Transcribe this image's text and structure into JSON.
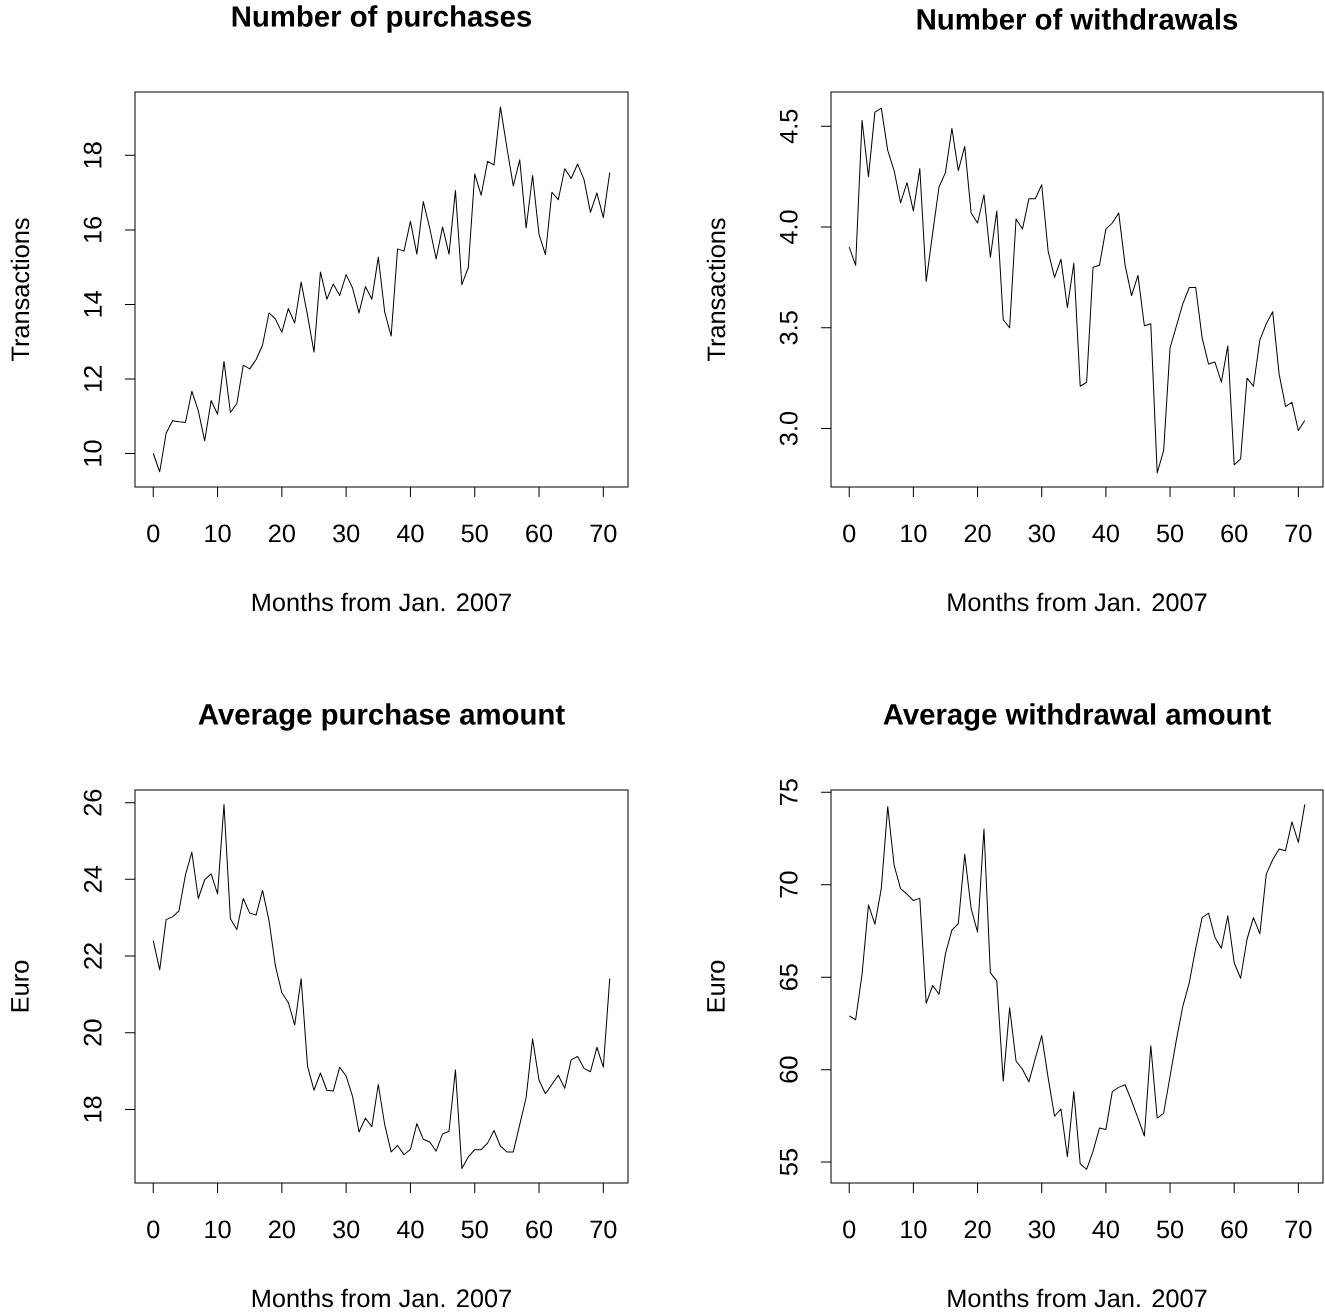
{
  "chart_data": [
    {
      "type": "line",
      "title": "Number of purchases",
      "xlabel": "Months from Jan. 2007",
      "ylabel": "Transactions",
      "color": "#000000",
      "x": [
        0,
        1,
        2,
        3,
        4,
        5,
        6,
        7,
        8,
        9,
        10,
        11,
        12,
        13,
        14,
        15,
        16,
        17,
        18,
        19,
        20,
        21,
        22,
        23,
        24,
        25,
        26,
        27,
        28,
        29,
        30,
        31,
        32,
        33,
        34,
        35,
        36,
        37,
        38,
        39,
        40,
        41,
        42,
        43,
        44,
        45,
        46,
        47,
        48,
        49,
        50,
        51,
        52,
        53,
        54,
        55,
        56,
        57,
        58,
        59,
        60,
        61,
        62,
        63,
        64,
        65,
        66,
        67,
        68,
        69,
        70,
        71
      ],
      "values": [
        10.0,
        9.51,
        10.54,
        10.88,
        10.85,
        10.83,
        11.67,
        11.15,
        10.34,
        11.42,
        11.05,
        12.47,
        11.1,
        11.34,
        12.37,
        12.27,
        12.52,
        12.91,
        13.77,
        13.61,
        13.25,
        13.89,
        13.5,
        14.6,
        13.7,
        12.72,
        14.87,
        14.14,
        14.55,
        14.24,
        14.8,
        14.44,
        13.77,
        14.48,
        14.14,
        15.27,
        13.79,
        13.15,
        15.49,
        15.43,
        16.23,
        15.35,
        16.76,
        16.05,
        15.22,
        16.08,
        15.35,
        17.06,
        14.53,
        14.99,
        17.5,
        16.93,
        17.84,
        17.74,
        19.3,
        18.21,
        17.18,
        17.88,
        16.05,
        17.46,
        15.88,
        15.34,
        17.01,
        16.81,
        17.64,
        17.38,
        17.77,
        17.35,
        16.47,
        16.99,
        16.33,
        17.54
      ],
      "xlim": [
        -2.84,
        73.84
      ],
      "ylim": [
        9.1,
        19.7
      ],
      "xticks": [
        0,
        10,
        20,
        30,
        40,
        50,
        60,
        70
      ],
      "yticks": [
        10,
        12,
        14,
        16,
        18
      ]
    },
    {
      "type": "line",
      "title": "Number of withdrawals",
      "xlabel": "Months from Jan. 2007",
      "ylabel": "Transactions",
      "color": "#000000",
      "x": [
        0,
        1,
        2,
        3,
        4,
        5,
        6,
        7,
        8,
        9,
        10,
        11,
        12,
        13,
        14,
        15,
        16,
        17,
        18,
        19,
        20,
        21,
        22,
        23,
        24,
        25,
        26,
        27,
        28,
        29,
        30,
        31,
        32,
        33,
        34,
        35,
        36,
        37,
        38,
        39,
        40,
        41,
        42,
        43,
        44,
        45,
        46,
        47,
        48,
        49,
        50,
        51,
        52,
        53,
        54,
        55,
        56,
        57,
        58,
        59,
        60,
        61,
        62,
        63,
        64,
        65,
        66,
        67,
        68,
        69,
        70,
        71
      ],
      "values": [
        3.9,
        3.81,
        4.53,
        4.25,
        4.57,
        4.59,
        4.38,
        4.28,
        4.12,
        4.22,
        4.08,
        4.29,
        3.73,
        3.97,
        4.2,
        4.27,
        4.49,
        4.28,
        4.4,
        4.07,
        4.02,
        4.16,
        3.85,
        4.08,
        3.54,
        3.5,
        4.04,
        3.99,
        4.14,
        4.14,
        4.21,
        3.88,
        3.75,
        3.84,
        3.6,
        3.82,
        3.21,
        3.23,
        3.8,
        3.81,
        3.99,
        4.02,
        4.07,
        3.81,
        3.66,
        3.76,
        3.51,
        3.52,
        2.78,
        2.89,
        3.4,
        3.51,
        3.62,
        3.7,
        3.7,
        3.45,
        3.32,
        3.33,
        3.23,
        3.41,
        2.82,
        2.85,
        3.25,
        3.21,
        3.44,
        3.52,
        3.58,
        3.27,
        3.11,
        3.13,
        2.99,
        3.04
      ],
      "xlim": [
        -2.84,
        73.84
      ],
      "ylim": [
        2.71,
        4.67
      ],
      "xticks": [
        0,
        10,
        20,
        30,
        40,
        50,
        60,
        70
      ],
      "yticks": [
        {
          "value": 3.0,
          "label": "3.0"
        },
        {
          "value": 3.5,
          "label": "3.5"
        },
        {
          "value": 4.0,
          "label": "4.0"
        },
        {
          "value": 4.5,
          "label": "4.5"
        }
      ]
    },
    {
      "type": "line",
      "title": "Average purchase amount",
      "xlabel": "Months from Jan. 2007",
      "ylabel": "Euro",
      "color": "#000000",
      "x": [
        0,
        1,
        2,
        3,
        4,
        5,
        6,
        7,
        8,
        9,
        10,
        11,
        12,
        13,
        14,
        15,
        16,
        17,
        18,
        19,
        20,
        21,
        22,
        23,
        24,
        25,
        26,
        27,
        28,
        29,
        30,
        31,
        32,
        33,
        34,
        35,
        36,
        37,
        38,
        39,
        40,
        41,
        42,
        43,
        44,
        45,
        46,
        47,
        48,
        49,
        50,
        51,
        52,
        53,
        54,
        55,
        56,
        57,
        58,
        59,
        60,
        61,
        62,
        63,
        64,
        65,
        66,
        67,
        68,
        69,
        70,
        71
      ],
      "values": [
        22.4,
        21.64,
        22.95,
        23.02,
        23.18,
        24.11,
        24.71,
        23.5,
        23.99,
        24.14,
        23.62,
        25.95,
        22.97,
        22.69,
        23.5,
        23.12,
        23.07,
        23.71,
        22.93,
        21.74,
        21.04,
        20.79,
        20.2,
        21.41,
        19.12,
        18.5,
        18.95,
        18.5,
        18.48,
        19.1,
        18.87,
        18.34,
        17.41,
        17.77,
        17.55,
        18.65,
        17.6,
        16.89,
        17.06,
        16.82,
        16.96,
        17.63,
        17.22,
        17.15,
        16.91,
        17.36,
        17.43,
        19.03,
        16.46,
        16.76,
        16.95,
        16.95,
        17.12,
        17.45,
        17.04,
        16.89,
        16.89,
        17.6,
        18.31,
        19.84,
        18.76,
        18.41,
        18.65,
        18.89,
        18.55,
        19.29,
        19.38,
        19.07,
        18.98,
        19.62,
        19.1,
        21.41
      ],
      "xlim": [
        -2.84,
        73.84
      ],
      "ylim": [
        16.08,
        26.33
      ],
      "xticks": [
        0,
        10,
        20,
        30,
        40,
        50,
        60,
        70
      ],
      "yticks": [
        18,
        20,
        22,
        24,
        26
      ]
    },
    {
      "type": "line",
      "title": "Average withdrawal amount",
      "xlabel": "Months from Jan. 2007",
      "ylabel": "Euro",
      "color": "#000000",
      "x": [
        0,
        1,
        2,
        3,
        4,
        5,
        6,
        7,
        8,
        9,
        10,
        11,
        12,
        13,
        14,
        15,
        16,
        17,
        18,
        19,
        20,
        21,
        22,
        23,
        24,
        25,
        26,
        27,
        28,
        29,
        30,
        31,
        32,
        33,
        34,
        35,
        36,
        37,
        38,
        39,
        40,
        41,
        42,
        43,
        44,
        45,
        46,
        47,
        48,
        49,
        50,
        51,
        52,
        53,
        54,
        55,
        56,
        57,
        58,
        59,
        60,
        61,
        62,
        63,
        64,
        65,
        66,
        67,
        68,
        69,
        70,
        71
      ],
      "values": [
        62.91,
        62.7,
        65.16,
        68.91,
        67.87,
        69.79,
        74.22,
        71.05,
        69.79,
        69.49,
        69.14,
        69.26,
        63.58,
        64.55,
        64.08,
        66.27,
        67.54,
        67.89,
        71.64,
        68.71,
        67.44,
        73.01,
        65.23,
        64.8,
        59.38,
        63.34,
        60.47,
        60.02,
        59.34,
        60.61,
        61.84,
        59.57,
        57.48,
        57.87,
        55.29,
        58.81,
        54.9,
        54.61,
        55.59,
        56.84,
        56.76,
        58.81,
        59.04,
        59.18,
        58.32,
        57.38,
        56.41,
        61.29,
        57.38,
        57.64,
        59.63,
        61.64,
        63.44,
        64.71,
        66.56,
        68.22,
        68.46,
        67.15,
        66.56,
        68.32,
        65.78,
        64.94,
        67.05,
        68.22,
        67.34,
        70.57,
        71.35,
        71.93,
        71.84,
        73.4,
        72.29,
        74.34
      ],
      "xlim": [
        -2.84,
        73.84
      ],
      "ylim": [
        53.87,
        75.12
      ],
      "xticks": [
        0,
        10,
        20,
        30,
        40,
        50,
        60,
        70
      ],
      "yticks": [
        55,
        60,
        65,
        70,
        75
      ]
    }
  ]
}
